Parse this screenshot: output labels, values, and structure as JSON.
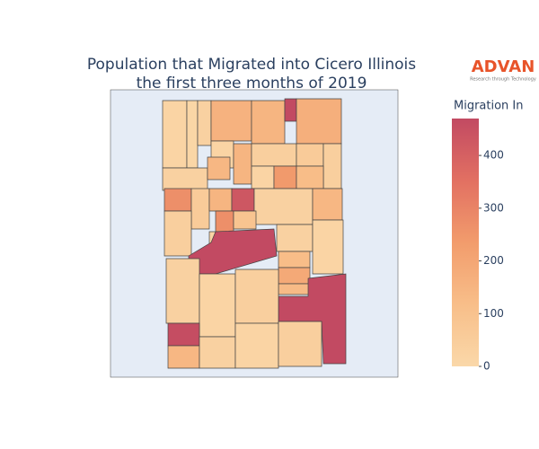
{
  "chart_data": {
    "type": "choropleth",
    "title_lines": [
      "Population that Migrated into Cicero Illinois",
      "the first three months of 2019"
    ],
    "logo": "ADVAN",
    "logo_tagline": "Research through Technology",
    "colorbar_title": "Migration In",
    "zlim": [
      0,
      470
    ],
    "zticks": [
      0,
      100,
      200,
      300,
      400
    ],
    "colorscale": [
      [
        0,
        "#fad8a9"
      ],
      [
        0.25,
        "#f8be89"
      ],
      [
        0.5,
        "#f29c6c"
      ],
      [
        0.75,
        "#e27062"
      ],
      [
        1,
        "#c24a62"
      ]
    ],
    "values": [
      20,
      10,
      30,
      160,
      150,
      470,
      170,
      20,
      150,
      40,
      60,
      40,
      30,
      140,
      20,
      240,
      120,
      270,
      60,
      150,
      430,
      30,
      140,
      40,
      270,
      90,
      20,
      30,
      20,
      470,
      120,
      190,
      130,
      470,
      30,
      20,
      40,
      460,
      140,
      30,
      20,
      40
    ]
  }
}
